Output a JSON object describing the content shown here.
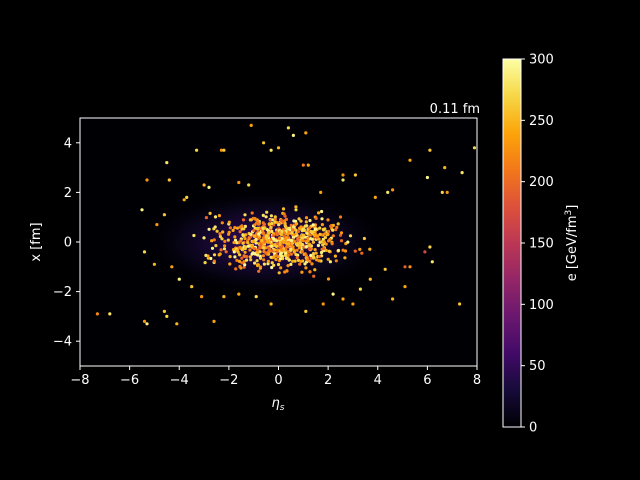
{
  "chart_data": {
    "type": "scatter",
    "time_label": "0.11 fm",
    "xlabel_main": "η",
    "xlabel_sub": "s",
    "ylabel": "x [fm]",
    "xlim": [
      -8,
      8
    ],
    "ylim": [
      -5,
      5
    ],
    "xticks": [
      -8,
      -6,
      -4,
      -2,
      0,
      2,
      4,
      6,
      8
    ],
    "yticks": [
      -4,
      -2,
      0,
      2,
      4
    ],
    "grid": false,
    "background_color": "#000000",
    "text_color": "#ffffff",
    "colormap": "inferno",
    "colorbar": {
      "label_main": "e [GeV/fm",
      "label_sup": "3",
      "label_end": "]",
      "range": [
        0,
        300
      ],
      "ticks": [
        0,
        50,
        100,
        150,
        200,
        250,
        300
      ]
    },
    "density_blob": {
      "center_x": -0.5,
      "center_y": 0,
      "sigma_x": 2.2,
      "sigma_y": 0.8,
      "peak_value": 150
    },
    "series": [
      {
        "points": [
          [
            -7.3,
            -2.9,
            220
          ],
          [
            -6.8,
            -2.9,
            280
          ],
          [
            -5.4,
            -3.2,
            230
          ],
          [
            -5.3,
            -3.3,
            290
          ],
          [
            -4.6,
            -2.8,
            260
          ],
          [
            -4.5,
            -3.0,
            270
          ],
          [
            -4.1,
            -3.3,
            250
          ],
          [
            -2.6,
            -3.2,
            240
          ],
          [
            -3.3,
            3.7,
            270
          ],
          [
            -4.5,
            3.2,
            280
          ],
          [
            -4.4,
            2.5,
            260
          ],
          [
            -5.3,
            2.5,
            230
          ],
          [
            -5.5,
            1.3,
            290
          ],
          [
            -1.1,
            4.7,
            240
          ],
          [
            -0.6,
            4.0,
            260
          ],
          [
            -0.3,
            3.7,
            280
          ],
          [
            0.0,
            3.8,
            250
          ],
          [
            -2.3,
            3.7,
            230
          ],
          [
            -2.2,
            3.7,
            260
          ],
          [
            0.4,
            4.6,
            270
          ],
          [
            0.6,
            4.3,
            290
          ],
          [
            1.1,
            4.4,
            240
          ],
          [
            7.9,
            3.8,
            270
          ],
          [
            6.1,
            3.7,
            260
          ],
          [
            7.4,
            2.8,
            280
          ],
          [
            6.7,
            3.0,
            250
          ],
          [
            6.6,
            2.0,
            270
          ],
          [
            6.8,
            2.0,
            230
          ],
          [
            5.3,
            3.3,
            240
          ],
          [
            6.0,
            2.6,
            290
          ],
          [
            7.3,
            -2.5,
            260
          ],
          [
            3.0,
            -2.5,
            240
          ],
          [
            4.6,
            -2.3,
            250
          ],
          [
            6.1,
            -0.2,
            270
          ],
          [
            6.2,
            -0.8,
            280
          ],
          [
            5.9,
            -0.4,
            170
          ],
          [
            5.1,
            -1.0,
            190
          ],
          [
            5.3,
            -1.0,
            230
          ],
          [
            2.6,
            2.7,
            230
          ],
          [
            3.1,
            2.7,
            260
          ],
          [
            2.6,
            2.5,
            280
          ],
          [
            1.7,
            2.0,
            240
          ],
          [
            -1.2,
            2.3,
            270
          ],
          [
            -3.0,
            2.3,
            250
          ],
          [
            -2.8,
            2.2,
            290
          ],
          [
            -1.6,
            2.4,
            230
          ],
          [
            1.0,
            3.1,
            210
          ],
          [
            1.2,
            3.1,
            240
          ],
          [
            -3.7,
            1.8,
            270
          ],
          [
            -3.8,
            1.7,
            240
          ],
          [
            4.4,
            2.0,
            280
          ],
          [
            3.9,
            1.8,
            240
          ],
          [
            4.6,
            2.1,
            230
          ],
          [
            5.1,
            -1.8,
            240
          ],
          [
            4.3,
            -1.1,
            260
          ],
          [
            3.7,
            -1.5,
            250
          ],
          [
            3.3,
            -1.9,
            270
          ],
          [
            2.2,
            -2.1,
            290
          ],
          [
            2.6,
            -2.3,
            240
          ],
          [
            1.8,
            -2.5,
            230
          ],
          [
            1.1,
            -2.8,
            260
          ],
          [
            -0.3,
            -2.5,
            250
          ],
          [
            -0.9,
            -2.2,
            270
          ],
          [
            -1.6,
            -2.1,
            240
          ],
          [
            -2.2,
            -2.2,
            250
          ],
          [
            -3.1,
            -2.2,
            230
          ],
          [
            -3.5,
            -1.8,
            260
          ],
          [
            -4.0,
            -1.5,
            290
          ],
          [
            -4.3,
            -1.0,
            240
          ],
          [
            -5.0,
            -0.9,
            250
          ],
          [
            -5.4,
            -0.4,
            270
          ],
          [
            -4.9,
            0.7,
            230
          ],
          [
            -4.6,
            1.1,
            260
          ]
        ]
      }
    ]
  }
}
